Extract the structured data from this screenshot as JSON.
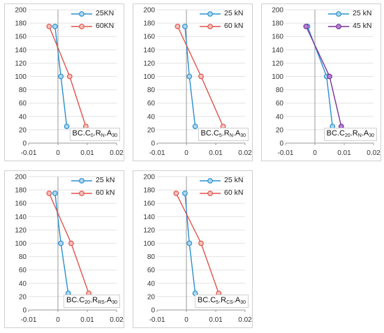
{
  "colors": {
    "blue": "#2a8fcf",
    "blue_fill": "#aed7ef",
    "red": "#e0524b",
    "red_fill": "#f6c1bc",
    "purple": "#7a2f9e",
    "purple_fill": "#b383d0",
    "grid": "#e2e2e2",
    "axis": "#9a9a9a"
  },
  "chart_data": [
    {
      "type": "line",
      "label_parts": [
        "BC.C",
        "0",
        ".R",
        "N",
        ".A",
        "30"
      ],
      "xlim": [
        -0.01,
        0.02
      ],
      "ylim": [
        0,
        200
      ],
      "xticks": [
        "-0.01",
        "0",
        "0.01",
        "0.02"
      ],
      "yticks": [
        "0",
        "20",
        "40",
        "60",
        "80",
        "100",
        "120",
        "140",
        "160",
        "180",
        "200"
      ],
      "legend_position": "top-right",
      "series": [
        {
          "name": "25KN",
          "color_key": "blue",
          "x": [
            -0.001,
            0.001,
            0.003
          ],
          "y": [
            175,
            100,
            25
          ]
        },
        {
          "name": "60KN",
          "color_key": "red",
          "x": [
            -0.003,
            0.004,
            0.0095
          ],
          "y": [
            175,
            100,
            25
          ]
        }
      ]
    },
    {
      "type": "line",
      "label_parts": [
        "BC.C",
        "5",
        ".R",
        "N",
        ".A",
        "30"
      ],
      "xlim": [
        -0.01,
        0.02
      ],
      "ylim": [
        0,
        200
      ],
      "xticks": [
        "-0.01",
        "0",
        "0.01",
        "0.02"
      ],
      "yticks": [
        "0",
        "20",
        "40",
        "60",
        "80",
        "100",
        "120",
        "140",
        "160",
        "180",
        "200"
      ],
      "legend_position": "top-right",
      "series": [
        {
          "name": "25 kN",
          "color_key": "blue",
          "x": [
            -0.0005,
            0.001,
            0.003
          ],
          "y": [
            175,
            100,
            25
          ]
        },
        {
          "name": "60 kN",
          "color_key": "red",
          "x": [
            -0.003,
            0.005,
            0.0125
          ],
          "y": [
            175,
            100,
            25
          ]
        }
      ]
    },
    {
      "type": "line",
      "label_parts": [
        "BC.C",
        "20",
        ".R",
        "N",
        ".A",
        "30"
      ],
      "xlim": [
        -0.01,
        0.02
      ],
      "ylim": [
        0,
        200
      ],
      "xticks": [
        "-0.01",
        "0",
        "0.01",
        "0.02"
      ],
      "yticks": [
        "0",
        "20",
        "40",
        "60",
        "80",
        "100",
        "120",
        "140",
        "160",
        "180",
        "200"
      ],
      "legend_position": "top-right",
      "series": [
        {
          "name": "25 kN",
          "color_key": "blue",
          "x": [
            -0.0025,
            0.004,
            0.006
          ],
          "y": [
            175,
            100,
            25
          ]
        },
        {
          "name": "45 kN",
          "color_key": "purple",
          "x": [
            -0.003,
            0.005,
            0.009
          ],
          "y": [
            175,
            100,
            25
          ]
        }
      ]
    },
    {
      "type": "line",
      "label_parts": [
        "BC.C",
        "20",
        ".R",
        "RS",
        ".A",
        "30"
      ],
      "xlim": [
        -0.01,
        0.02
      ],
      "ylim": [
        0,
        200
      ],
      "xticks": [
        "-0.01",
        "0",
        "0.01",
        "0.02"
      ],
      "yticks": [
        "0",
        "20",
        "40",
        "60",
        "80",
        "100",
        "120",
        "140",
        "160",
        "180",
        "200"
      ],
      "legend_position": "top-right",
      "series": [
        {
          "name": "25 kN",
          "color_key": "blue",
          "x": [
            -0.001,
            0.001,
            0.0035
          ],
          "y": [
            175,
            100,
            25
          ]
        },
        {
          "name": "60 kN",
          "color_key": "red",
          "x": [
            -0.003,
            0.0045,
            0.0105
          ],
          "y": [
            175,
            100,
            25
          ]
        }
      ]
    },
    {
      "type": "line",
      "label_parts": [
        "BC.C",
        "5",
        ".R",
        "CS",
        ".A",
        "30"
      ],
      "xlim": [
        -0.01,
        0.02
      ],
      "ylim": [
        0,
        200
      ],
      "xticks": [
        "-0.01",
        "0",
        "0.01",
        "0.02"
      ],
      "yticks": [
        "0",
        "20",
        "40",
        "60",
        "80",
        "100",
        "120",
        "140",
        "160",
        "180",
        "200"
      ],
      "legend_position": "top-right",
      "series": [
        {
          "name": "25 kN",
          "color_key": "blue",
          "x": [
            -0.0005,
            0.001,
            0.003
          ],
          "y": [
            175,
            100,
            25
          ]
        },
        {
          "name": "60 kN",
          "color_key": "red",
          "x": [
            -0.0035,
            0.005,
            0.011
          ],
          "y": [
            175,
            100,
            25
          ]
        }
      ]
    }
  ]
}
